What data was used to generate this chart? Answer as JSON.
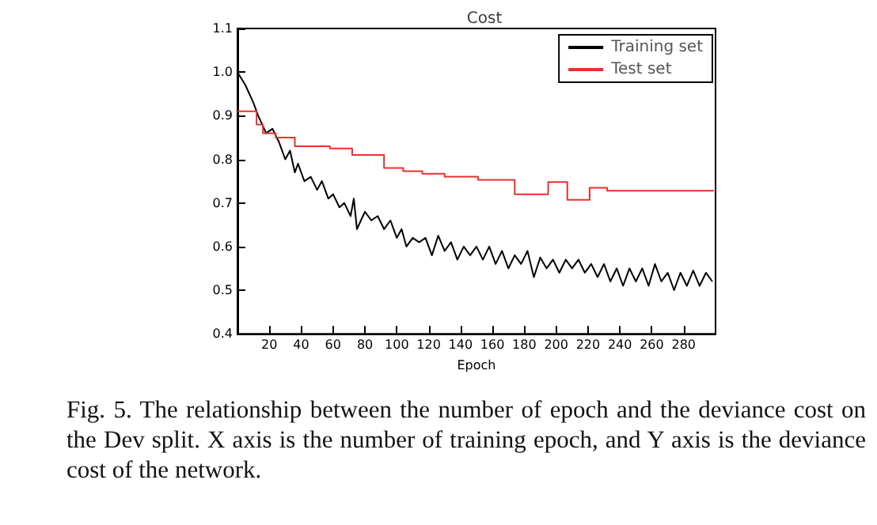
{
  "chart_data": {
    "type": "line",
    "title": "Cost",
    "xlabel": "Epoch",
    "xlim": [
      0,
      300
    ],
    "xticks": [
      20,
      40,
      60,
      80,
      100,
      120,
      140,
      160,
      180,
      200,
      220,
      240,
      260,
      280
    ],
    "ylim": [
      0.4,
      1.1
    ],
    "yticks": [
      0.4,
      0.5,
      0.6,
      0.7,
      0.8,
      0.9,
      {
        "value": 1,
        "label": "1.0"
      },
      1.1
    ],
    "grid": false,
    "legend": "top right",
    "marker": "none",
    "line_style": "solid",
    "series": [
      {
        "name": "Training set",
        "color": "#000000",
        "x": [
          0,
          5,
          10,
          13,
          18,
          22,
          26,
          30,
          33,
          36,
          38,
          42,
          46,
          50,
          53,
          57,
          60,
          64,
          67,
          71,
          73,
          75,
          80,
          84,
          88,
          92,
          96,
          100,
          103,
          106,
          110,
          114,
          118,
          122,
          126,
          130,
          134,
          138,
          142,
          146,
          150,
          154,
          158,
          162,
          166,
          170,
          174,
          178,
          182,
          186,
          190,
          194,
          198,
          202,
          206,
          210,
          214,
          218,
          222,
          226,
          230,
          234,
          238,
          242,
          246,
          250,
          254,
          258,
          262,
          266,
          270,
          274,
          278,
          282,
          286,
          290,
          294,
          298
        ],
        "values": [
          1.0,
          0.97,
          0.93,
          0.9,
          0.86,
          0.87,
          0.84,
          0.8,
          0.82,
          0.77,
          0.79,
          0.75,
          0.76,
          0.73,
          0.75,
          0.71,
          0.72,
          0.69,
          0.7,
          0.67,
          0.71,
          0.64,
          0.68,
          0.66,
          0.67,
          0.64,
          0.66,
          0.62,
          0.64,
          0.6,
          0.62,
          0.61,
          0.62,
          0.58,
          0.625,
          0.59,
          0.61,
          0.57,
          0.6,
          0.58,
          0.6,
          0.57,
          0.6,
          0.56,
          0.59,
          0.55,
          0.58,
          0.56,
          0.59,
          0.53,
          0.575,
          0.55,
          0.57,
          0.54,
          0.57,
          0.55,
          0.57,
          0.54,
          0.56,
          0.53,
          0.56,
          0.52,
          0.55,
          0.51,
          0.55,
          0.52,
          0.55,
          0.51,
          0.56,
          0.52,
          0.54,
          0.5,
          0.54,
          0.51,
          0.545,
          0.51,
          0.54,
          0.52
        ]
      },
      {
        "name": "Test set",
        "type": "step",
        "color": "#e8302e",
        "x": [
          0,
          12,
          16,
          24,
          36,
          58,
          72,
          92,
          104,
          116,
          130,
          151,
          174,
          195,
          207,
          221,
          232,
          299
        ],
        "values": [
          0.91,
          0.88,
          0.86,
          0.85,
          0.83,
          0.825,
          0.81,
          0.78,
          0.773,
          0.767,
          0.76,
          0.753,
          0.72,
          0.748,
          0.707,
          0.735,
          0.728,
          0.728
        ]
      }
    ],
    "annotations": [
      "Fig. 5.   The relationship between the number of epoch and the deviance cost on the Dev split. X axis is the number of training epoch, and Y axis is the deviance cost of the network."
    ]
  }
}
